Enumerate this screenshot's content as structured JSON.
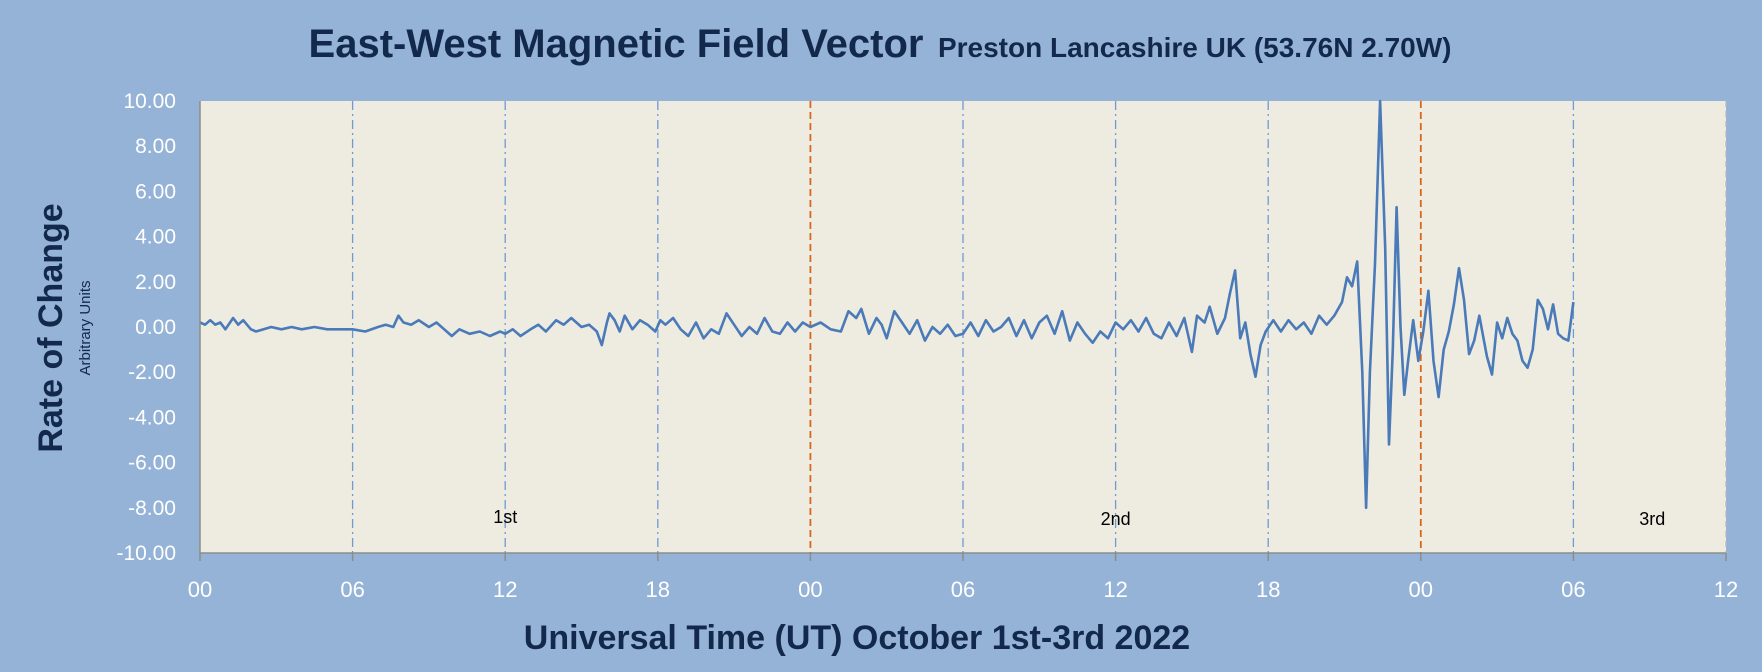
{
  "colors": {
    "background": "#95b3d7",
    "plot_area": "#eeebe1",
    "series_line": "#4a7ab8",
    "six_hour_marker": "#6f9ad6",
    "day_marker": "#d9671a",
    "axis_text": "#ffffff",
    "title_text": "#13294b"
  },
  "chart_data": {
    "type": "line",
    "title": "East-West Magnetic Field Vector",
    "subtitle": "Preston Lancashire UK (53.76N 2.70W)",
    "ylabel": "Rate of Change",
    "ylabel_sub": "Arbitrary Units",
    "xlabel": "Universal Time (UT) October 1st-3rd 2022",
    "x_unit": "hours since 00 UT October 1st 2022",
    "xlim": [
      0,
      60
    ],
    "ylim": [
      -10,
      10
    ],
    "x_ticks": [
      0,
      6,
      12,
      18,
      24,
      30,
      36,
      42,
      48,
      54,
      60
    ],
    "x_tick_labels": [
      "00",
      "06",
      "12",
      "18",
      "00",
      "06",
      "12",
      "18",
      "00",
      "06",
      "12"
    ],
    "y_ticks": [
      10,
      8,
      6,
      4,
      2,
      0,
      -2,
      -4,
      -6,
      -8,
      -10
    ],
    "y_tick_labels": [
      "10.00",
      "8.00",
      "6.00",
      "4.00",
      "2.00",
      "0.00",
      "-2.00",
      "-4.00",
      "-6.00",
      "-8.00",
      "-10.00"
    ],
    "six_hour_markers": [
      6,
      12,
      18,
      30,
      36,
      42,
      54
    ],
    "day_markers": [
      24,
      48
    ],
    "annotations": [
      {
        "text": "1st",
        "x": 12,
        "y": -8.4
      },
      {
        "text": "2nd",
        "x": 36,
        "y": -8.5
      },
      {
        "text": "3rd",
        "x": 57.1,
        "y": -8.5
      }
    ],
    "grid": false,
    "legend": "none",
    "series": [
      {
        "points": [
          [
            0,
            0.2
          ],
          [
            0.2,
            0.1
          ],
          [
            0.4,
            0.3
          ],
          [
            0.6,
            0.1
          ],
          [
            0.8,
            0.2
          ],
          [
            1.0,
            -0.1
          ],
          [
            1.3,
            0.4
          ],
          [
            1.5,
            0.1
          ],
          [
            1.7,
            0.3
          ],
          [
            2.0,
            -0.1
          ],
          [
            2.2,
            -0.2
          ],
          [
            2.5,
            -0.1
          ],
          [
            2.8,
            0.0
          ],
          [
            3.2,
            -0.1
          ],
          [
            3.6,
            0.0
          ],
          [
            4.0,
            -0.1
          ],
          [
            4.5,
            0.0
          ],
          [
            5.0,
            -0.1
          ],
          [
            5.5,
            -0.1
          ],
          [
            6.0,
            -0.1
          ],
          [
            6.5,
            -0.2
          ],
          [
            7.0,
            0.0
          ],
          [
            7.3,
            0.1
          ],
          [
            7.6,
            0.0
          ],
          [
            7.8,
            0.5
          ],
          [
            8.0,
            0.2
          ],
          [
            8.3,
            0.1
          ],
          [
            8.6,
            0.3
          ],
          [
            9.0,
            0.0
          ],
          [
            9.3,
            0.2
          ],
          [
            9.6,
            -0.1
          ],
          [
            9.9,
            -0.4
          ],
          [
            10.2,
            -0.1
          ],
          [
            10.6,
            -0.3
          ],
          [
            11.0,
            -0.2
          ],
          [
            11.4,
            -0.4
          ],
          [
            11.8,
            -0.2
          ],
          [
            12.0,
            -0.3
          ],
          [
            12.3,
            -0.1
          ],
          [
            12.6,
            -0.4
          ],
          [
            13.0,
            -0.1
          ],
          [
            13.3,
            0.1
          ],
          [
            13.6,
            -0.2
          ],
          [
            14.0,
            0.3
          ],
          [
            14.3,
            0.1
          ],
          [
            14.6,
            0.4
          ],
          [
            15.0,
            0.0
          ],
          [
            15.3,
            0.1
          ],
          [
            15.6,
            -0.2
          ],
          [
            15.8,
            -0.8
          ],
          [
            16.0,
            0.2
          ],
          [
            16.1,
            0.6
          ],
          [
            16.3,
            0.3
          ],
          [
            16.5,
            -0.2
          ],
          [
            16.7,
            0.5
          ],
          [
            17.0,
            -0.1
          ],
          [
            17.3,
            0.3
          ],
          [
            17.6,
            0.1
          ],
          [
            17.9,
            -0.2
          ],
          [
            18.1,
            0.3
          ],
          [
            18.3,
            0.1
          ],
          [
            18.6,
            0.4
          ],
          [
            18.9,
            -0.1
          ],
          [
            19.2,
            -0.4
          ],
          [
            19.5,
            0.2
          ],
          [
            19.8,
            -0.5
          ],
          [
            20.1,
            -0.1
          ],
          [
            20.4,
            -0.3
          ],
          [
            20.7,
            0.6
          ],
          [
            21.0,
            0.1
          ],
          [
            21.3,
            -0.4
          ],
          [
            21.6,
            0.0
          ],
          [
            21.9,
            -0.3
          ],
          [
            22.2,
            0.4
          ],
          [
            22.5,
            -0.2
          ],
          [
            22.8,
            -0.3
          ],
          [
            23.1,
            0.2
          ],
          [
            23.4,
            -0.2
          ],
          [
            23.7,
            0.2
          ],
          [
            24.0,
            0.0
          ],
          [
            24.4,
            0.2
          ],
          [
            24.8,
            -0.1
          ],
          [
            25.2,
            -0.2
          ],
          [
            25.5,
            0.7
          ],
          [
            25.8,
            0.4
          ],
          [
            26.0,
            0.8
          ],
          [
            26.3,
            -0.3
          ],
          [
            26.6,
            0.4
          ],
          [
            26.8,
            0.1
          ],
          [
            27.0,
            -0.5
          ],
          [
            27.3,
            0.7
          ],
          [
            27.6,
            0.2
          ],
          [
            27.9,
            -0.3
          ],
          [
            28.2,
            0.3
          ],
          [
            28.5,
            -0.6
          ],
          [
            28.8,
            0.0
          ],
          [
            29.1,
            -0.3
          ],
          [
            29.4,
            0.1
          ],
          [
            29.7,
            -0.4
          ],
          [
            30.0,
            -0.3
          ],
          [
            30.3,
            0.2
          ],
          [
            30.6,
            -0.4
          ],
          [
            30.9,
            0.3
          ],
          [
            31.2,
            -0.2
          ],
          [
            31.5,
            0.0
          ],
          [
            31.8,
            0.4
          ],
          [
            32.1,
            -0.4
          ],
          [
            32.4,
            0.3
          ],
          [
            32.7,
            -0.5
          ],
          [
            33.0,
            0.2
          ],
          [
            33.3,
            0.5
          ],
          [
            33.6,
            -0.3
          ],
          [
            33.9,
            0.7
          ],
          [
            34.2,
            -0.6
          ],
          [
            34.5,
            0.2
          ],
          [
            34.8,
            -0.3
          ],
          [
            35.1,
            -0.7
          ],
          [
            35.4,
            -0.2
          ],
          [
            35.7,
            -0.5
          ],
          [
            36.0,
            0.2
          ],
          [
            36.3,
            -0.1
          ],
          [
            36.6,
            0.3
          ],
          [
            36.9,
            -0.2
          ],
          [
            37.2,
            0.4
          ],
          [
            37.5,
            -0.3
          ],
          [
            37.8,
            -0.5
          ],
          [
            38.1,
            0.2
          ],
          [
            38.4,
            -0.4
          ],
          [
            38.7,
            0.4
          ],
          [
            39.0,
            -1.1
          ],
          [
            39.2,
            0.5
          ],
          [
            39.5,
            0.2
          ],
          [
            39.7,
            0.9
          ],
          [
            40.0,
            -0.3
          ],
          [
            40.3,
            0.4
          ],
          [
            40.5,
            1.5
          ],
          [
            40.7,
            2.5
          ],
          [
            40.9,
            -0.5
          ],
          [
            41.1,
            0.2
          ],
          [
            41.3,
            -1.2
          ],
          [
            41.5,
            -2.2
          ],
          [
            41.7,
            -0.8
          ],
          [
            41.9,
            -0.2
          ],
          [
            42.2,
            0.3
          ],
          [
            42.5,
            -0.2
          ],
          [
            42.8,
            0.3
          ],
          [
            43.1,
            -0.1
          ],
          [
            43.4,
            0.2
          ],
          [
            43.7,
            -0.3
          ],
          [
            44.0,
            0.5
          ],
          [
            44.3,
            0.1
          ],
          [
            44.6,
            0.5
          ],
          [
            44.9,
            1.1
          ],
          [
            45.1,
            2.2
          ],
          [
            45.3,
            1.8
          ],
          [
            45.5,
            2.9
          ],
          [
            45.7,
            -2.0
          ],
          [
            45.85,
            -8.0
          ],
          [
            46.0,
            -2.0
          ],
          [
            46.2,
            2.8
          ],
          [
            46.4,
            10.0
          ],
          [
            46.6,
            3.5
          ],
          [
            46.75,
            -5.2
          ],
          [
            46.9,
            -1.0
          ],
          [
            47.05,
            5.3
          ],
          [
            47.2,
            0.0
          ],
          [
            47.35,
            -3.0
          ],
          [
            47.5,
            -1.5
          ],
          [
            47.7,
            0.3
          ],
          [
            47.9,
            -1.5
          ],
          [
            48.1,
            -0.2
          ],
          [
            48.3,
            1.6
          ],
          [
            48.5,
            -1.5
          ],
          [
            48.7,
            -3.1
          ],
          [
            48.9,
            -1.0
          ],
          [
            49.1,
            -0.2
          ],
          [
            49.3,
            1.0
          ],
          [
            49.5,
            2.6
          ],
          [
            49.7,
            1.2
          ],
          [
            49.9,
            -1.2
          ],
          [
            50.1,
            -0.6
          ],
          [
            50.3,
            0.5
          ],
          [
            50.6,
            -1.3
          ],
          [
            50.8,
            -2.1
          ],
          [
            51.0,
            0.2
          ],
          [
            51.2,
            -0.5
          ],
          [
            51.4,
            0.4
          ],
          [
            51.6,
            -0.3
          ],
          [
            51.8,
            -0.6
          ],
          [
            52.0,
            -1.5
          ],
          [
            52.2,
            -1.8
          ],
          [
            52.4,
            -1.0
          ],
          [
            52.6,
            1.2
          ],
          [
            52.8,
            0.8
          ],
          [
            53.0,
            -0.1
          ],
          [
            53.2,
            1.0
          ],
          [
            53.4,
            -0.3
          ],
          [
            53.6,
            -0.5
          ],
          [
            53.8,
            -0.6
          ],
          [
            54.0,
            1.1
          ]
        ]
      }
    ]
  }
}
